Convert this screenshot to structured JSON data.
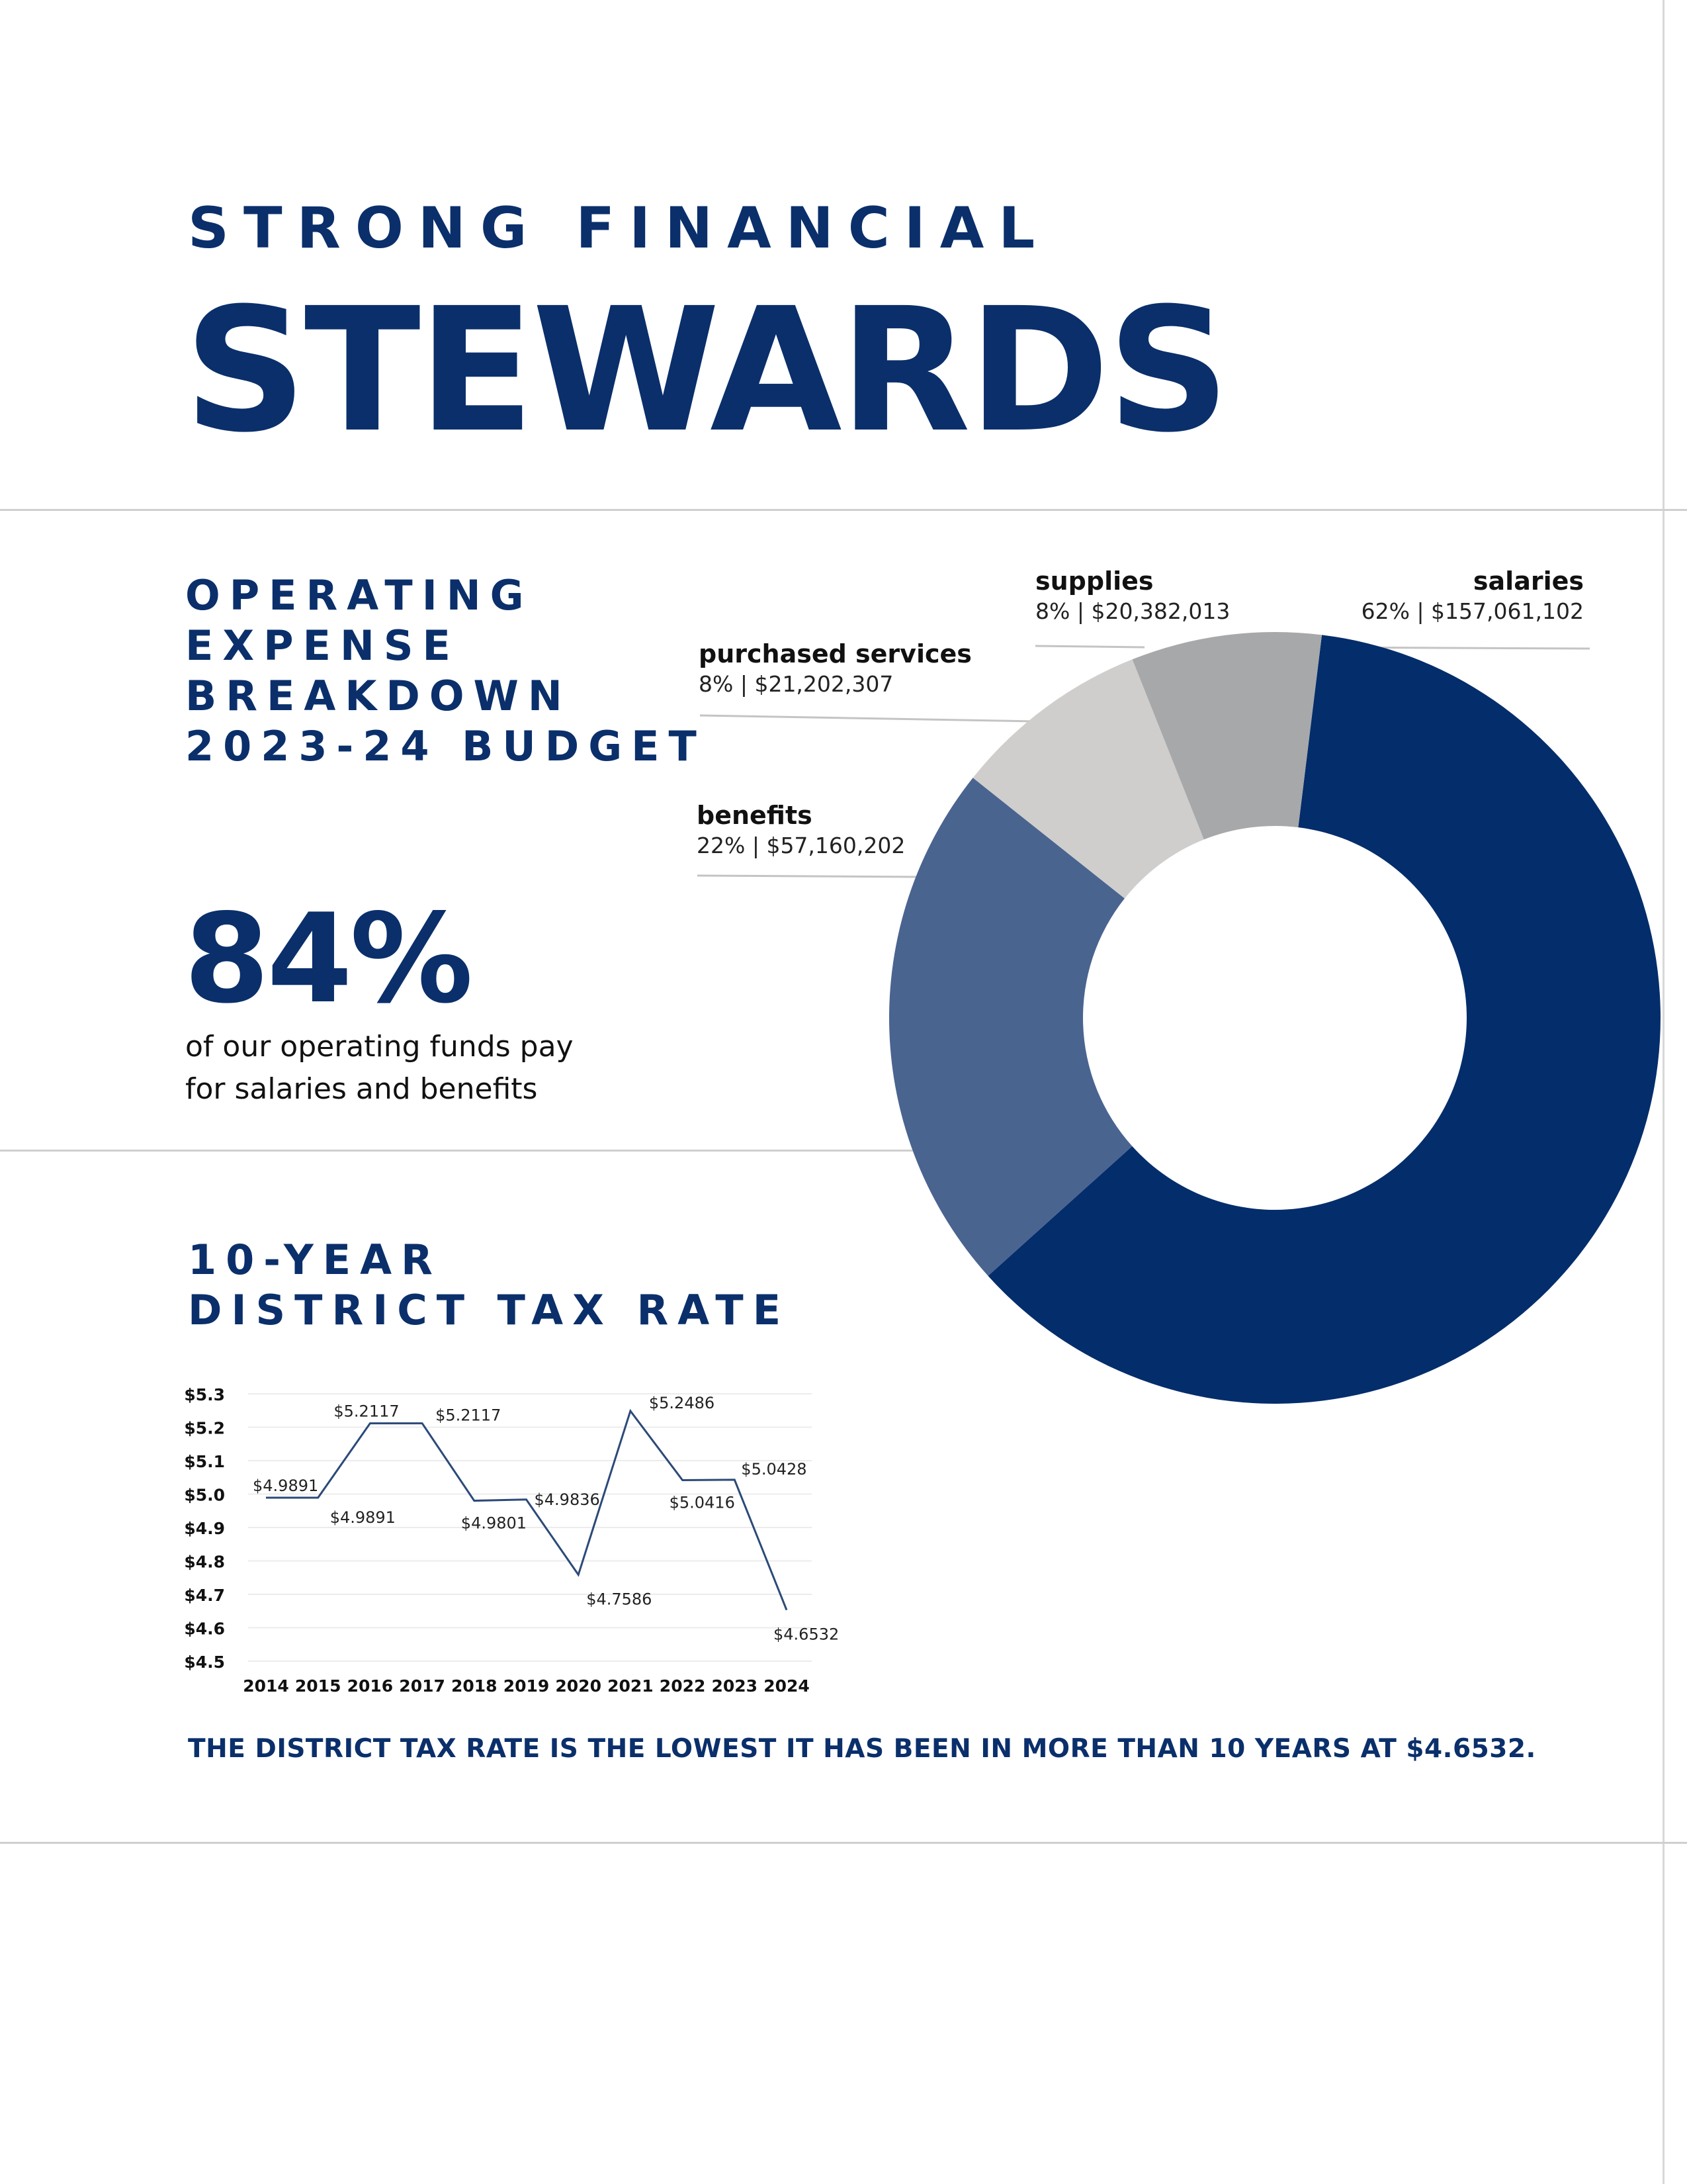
{
  "header": {
    "kicker": "STRONG FINANCIAL",
    "headline": "STEWARDS"
  },
  "expense_section": {
    "title_lines": [
      "OPERATING",
      "EXPENSE",
      "BREAKDOWN",
      "2023-24 BUDGET"
    ],
    "big_stat": "84%",
    "stat_caption_lines": [
      "of our operating funds pay",
      "for salaries and benefits"
    ]
  },
  "tax_section": {
    "title_lines": [
      "10-YEAR",
      "DISTRICT TAX RATE"
    ],
    "statement": "THE DISTRICT TAX RATE IS THE LOWEST IT HAS BEEN IN MORE THAN 10 YEARS AT $4.6532."
  },
  "colors": {
    "brand_navy": "#032d6b",
    "benefits": "#4a6490",
    "purchased_services": "#cfcecc",
    "supplies": "#a7a8aa",
    "line": "#2c4a78"
  },
  "chart_data": [
    {
      "type": "pie",
      "donut": true,
      "slices": [
        {
          "name": "salaries",
          "label": "62% | $157,061,102",
          "percent": 62,
          "value": 157061102,
          "color": "#032d6b"
        },
        {
          "name": "benefits",
          "label": "22% | $57,160,202",
          "percent": 22,
          "value": 57160202,
          "color": "#4a6490"
        },
        {
          "name": "purchased services",
          "label": "8% | $21,202,307",
          "percent": 8,
          "value": 21202307,
          "color": "#cfcecc"
        },
        {
          "name": "supplies",
          "label": "8% | $20,382,013",
          "percent": 8,
          "value": 20382013,
          "color": "#a7a8aa"
        }
      ]
    },
    {
      "type": "line",
      "categories": [
        "2014",
        "2015",
        "2016",
        "2017",
        "2018",
        "2019",
        "2020",
        "2021",
        "2022",
        "2023",
        "2024"
      ],
      "values": [
        4.9891,
        4.9891,
        5.2117,
        5.2117,
        4.9801,
        4.9836,
        4.7586,
        5.2486,
        5.0416,
        5.0428,
        4.6532
      ],
      "data_labels": [
        "$4.9891",
        "$4.9891",
        "$5.2117",
        "$5.2117",
        "$4.9801",
        "$4.9836",
        "$4.7586",
        "$5.2486",
        "$5.0416",
        "$5.0428",
        "$4.6532"
      ],
      "yticks": [
        "$5.3",
        "$5.2",
        "$5.1",
        "$5.0",
        "$4.9",
        "$4.8",
        "$4.7",
        "$4.6",
        "$4.5"
      ],
      "ytick_values": [
        5.3,
        5.2,
        5.1,
        5.0,
        4.9,
        4.8,
        4.7,
        4.6,
        4.5
      ],
      "ylim": [
        4.5,
        5.3
      ],
      "grid": true
    }
  ]
}
